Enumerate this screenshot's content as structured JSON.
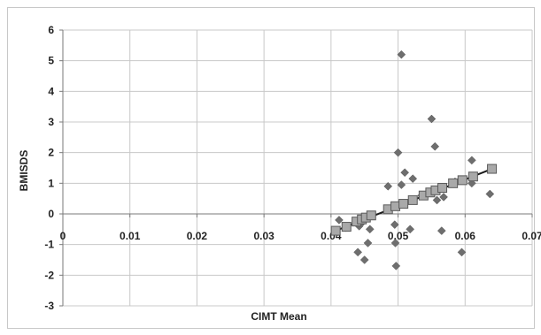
{
  "chart_data": {
    "type": "scatter",
    "title": "",
    "xlabel": "CIMT Mean",
    "ylabel": "BMISDS",
    "xlim": [
      0,
      0.07
    ],
    "ylim": [
      -3,
      6
    ],
    "x_ticks": [
      "0",
      "0.01",
      "0.02",
      "0.03",
      "0.04",
      "0.05",
      "0.06",
      "0.07"
    ],
    "y_ticks": [
      "-3",
      "-2",
      "-1",
      "0",
      "1",
      "2",
      "3",
      "4",
      "5",
      "6"
    ],
    "x_tick_values": [
      0,
      0.01,
      0.02,
      0.03,
      0.04,
      0.05,
      0.06,
      0.07
    ],
    "y_tick_values": [
      -3,
      -2,
      -1,
      0,
      1,
      2,
      3,
      4,
      5,
      6
    ],
    "grid": true,
    "legend": "none",
    "colors": {
      "observed": "#6e6e6e",
      "fitted": "#a9a9a9",
      "fit_line": "#1a1a1a",
      "grid": "#c8c8c8"
    },
    "series": [
      {
        "marker": "diamond",
        "points": [
          [
            0.0412,
            -0.2
          ],
          [
            0.0422,
            -0.45
          ],
          [
            0.044,
            -1.25
          ],
          [
            0.0442,
            -0.4
          ],
          [
            0.0448,
            -0.25
          ],
          [
            0.045,
            -1.5
          ],
          [
            0.0455,
            -0.95
          ],
          [
            0.0458,
            -0.5
          ],
          [
            0.0485,
            0.9
          ],
          [
            0.0495,
            -0.35
          ],
          [
            0.0496,
            -0.95
          ],
          [
            0.0497,
            -1.7
          ],
          [
            0.05,
            2.0
          ],
          [
            0.0505,
            5.2
          ],
          [
            0.0505,
            0.95
          ],
          [
            0.051,
            1.35
          ],
          [
            0.0518,
            -0.5
          ],
          [
            0.0522,
            1.15
          ],
          [
            0.0535,
            0.6
          ],
          [
            0.055,
            3.1
          ],
          [
            0.0555,
            2.2
          ],
          [
            0.0558,
            0.45
          ],
          [
            0.0565,
            -0.55
          ],
          [
            0.0568,
            0.55
          ],
          [
            0.0585,
            1.05
          ],
          [
            0.0595,
            -1.25
          ],
          [
            0.061,
            1.0
          ],
          [
            0.061,
            1.75
          ],
          [
            0.0637,
            0.65
          ]
        ]
      },
      {
        "marker": "square",
        "points": [
          [
            0.0407,
            -0.55
          ],
          [
            0.0423,
            -0.42
          ],
          [
            0.0438,
            -0.25
          ],
          [
            0.0446,
            -0.18
          ],
          [
            0.0452,
            -0.12
          ],
          [
            0.046,
            -0.05
          ],
          [
            0.0485,
            0.15
          ],
          [
            0.0496,
            0.25
          ],
          [
            0.0508,
            0.33
          ],
          [
            0.0522,
            0.45
          ],
          [
            0.0538,
            0.6
          ],
          [
            0.0548,
            0.7
          ],
          [
            0.0556,
            0.77
          ],
          [
            0.0566,
            0.85
          ],
          [
            0.0582,
            1.0
          ],
          [
            0.0596,
            1.1
          ],
          [
            0.0612,
            1.22
          ],
          [
            0.064,
            1.47
          ]
        ]
      }
    ],
    "fit_line": [
      [
        0.0407,
        -0.55
      ],
      [
        0.064,
        1.47
      ]
    ]
  }
}
